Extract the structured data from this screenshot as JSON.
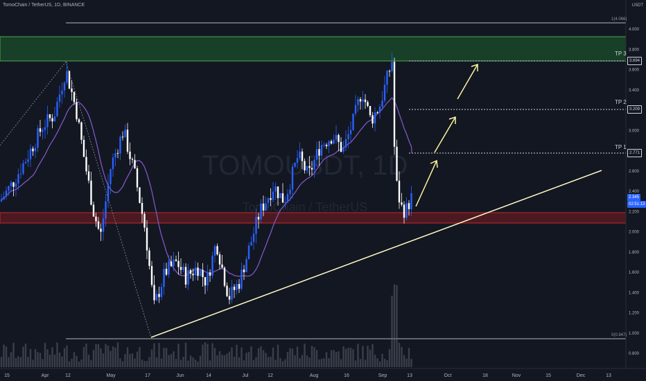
{
  "header": {
    "symbol_line": "TomoChain / TetherUS, 1D, BINANCE"
  },
  "watermark": {
    "line1": "TOMOUSDT, 1D",
    "line2": "TomoChain / TetherUS"
  },
  "price_axis": {
    "unit": "USDT",
    "ticks": [
      "4.000",
      "3.800",
      "3.600",
      "3.400",
      "3.200",
      "3.000",
      "2.800",
      "2.600",
      "2.400",
      "2.200",
      "2.000",
      "1.800",
      "1.600",
      "1.400",
      "1.200",
      "1.000",
      "0.800"
    ]
  },
  "time_axis": {
    "ticks": [
      "15",
      "Apr",
      "12",
      "May",
      "17",
      "Jun",
      "14",
      "Jul",
      "12",
      "Aug",
      "16",
      "Sep",
      "13",
      "Oct",
      "18",
      "Nov",
      "15",
      "Dec",
      "13"
    ]
  },
  "fib": {
    "top_label": "1(4.066)",
    "bottom_label": "0(0.947)"
  },
  "targets": [
    {
      "name": "TP 3",
      "price": "3.694"
    },
    {
      "name": "TP 2",
      "price": "3.209"
    },
    {
      "name": "TP 1",
      "price": "2.771"
    }
  ],
  "current_price": {
    "price": "2.345",
    "countdown": "02:51:13"
  },
  "colors": {
    "background": "#131722",
    "up": "#2962ff",
    "down": "#ffffff",
    "ma": "#7e57c2",
    "resistance": "#1b5e20",
    "support": "#801922",
    "trendline": "#fff9c4",
    "arrow": "#fff59d"
  },
  "chart_data": {
    "type": "candlestick",
    "symbol": "TomoChain / TetherUS",
    "interval": "1D",
    "exchange": "BINANCE",
    "price_range": [
      0.7,
      4.1
    ],
    "zones": {
      "resistance": [
        3.694,
        3.93
      ],
      "support": [
        2.09,
        2.19
      ]
    },
    "trendline": {
      "from": [
        "May 17",
        0.95
      ],
      "to": [
        "Oct 30",
        2.6
      ]
    },
    "approx_path": [
      {
        "date": "Mar 15",
        "close": 2.3
      },
      {
        "date": "Mar 22",
        "close": 2.6
      },
      {
        "date": "Mar 29",
        "close": 2.9
      },
      {
        "date": "Apr 5",
        "close": 3.15
      },
      {
        "date": "Apr 10",
        "close": 3.65
      },
      {
        "date": "Apr 18",
        "close": 3.1
      },
      {
        "date": "Apr 25",
        "close": 2.6
      },
      {
        "date": "May 1",
        "close": 1.9
      },
      {
        "date": "May 7",
        "close": 3.0
      },
      {
        "date": "May 12",
        "close": 2.7
      },
      {
        "date": "May 19",
        "close": 1.2
      },
      {
        "date": "May 24",
        "close": 1.6
      },
      {
        "date": "Jun 1",
        "close": 1.7
      },
      {
        "date": "Jun 10",
        "close": 1.5
      },
      {
        "date": "Jun 17",
        "close": 1.9
      },
      {
        "date": "Jun 22",
        "close": 1.3
      },
      {
        "date": "Jul 1",
        "close": 1.8
      },
      {
        "date": "Jul 10",
        "close": 2.3
      },
      {
        "date": "Jul 20",
        "close": 2.5
      },
      {
        "date": "Jul 28",
        "close": 2.9
      },
      {
        "date": "Aug 6",
        "close": 2.75
      },
      {
        "date": "Aug 16",
        "close": 3.1
      },
      {
        "date": "Aug 26",
        "close": 3.45
      },
      {
        "date": "Sep 1",
        "close": 3.2
      },
      {
        "date": "Sep 6",
        "close": 3.7
      },
      {
        "date": "Sep 7",
        "close": 2.5
      },
      {
        "date": "Sep 10",
        "close": 2.15
      },
      {
        "date": "Sep 13",
        "close": 2.345
      }
    ]
  }
}
